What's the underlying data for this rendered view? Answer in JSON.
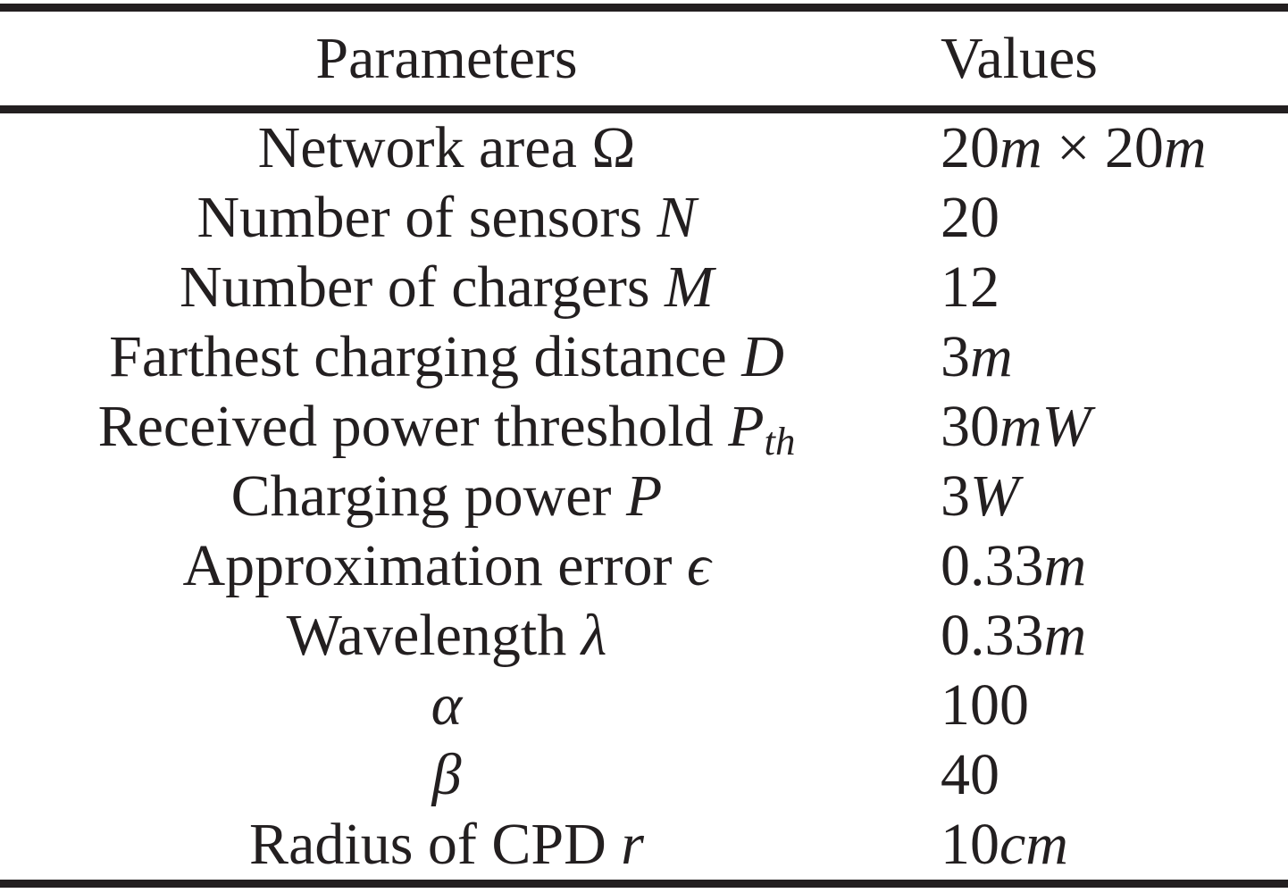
{
  "colors": {
    "text": "#231f20",
    "rule": "#231f20",
    "background": "#ffffff"
  },
  "table": {
    "col_headers": [
      "Parameters",
      "Values"
    ],
    "rows": [
      {
        "parameter_text": "Network area Ω",
        "value_text": "20m × 20m",
        "parameter_parts": [
          [
            "r",
            "Network area Ω"
          ]
        ],
        "value_parts": [
          [
            "r",
            "20"
          ],
          [
            "i",
            "m"
          ],
          [
            "r",
            " × 20"
          ],
          [
            "i",
            "m"
          ]
        ]
      },
      {
        "parameter_text": "Number of sensors N",
        "value_text": "20",
        "parameter_parts": [
          [
            "r",
            "Number of sensors "
          ],
          [
            "i",
            "N"
          ]
        ],
        "value_parts": [
          [
            "r",
            "20"
          ]
        ]
      },
      {
        "parameter_text": "Number of chargers M",
        "value_text": "12",
        "parameter_parts": [
          [
            "r",
            "Number of chargers "
          ],
          [
            "i",
            "M"
          ]
        ],
        "value_parts": [
          [
            "r",
            "12"
          ]
        ]
      },
      {
        "parameter_text": "Farthest charging distance D",
        "value_text": "3m",
        "parameter_parts": [
          [
            "r",
            "Farthest charging distance "
          ],
          [
            "i",
            "D"
          ]
        ],
        "value_parts": [
          [
            "r",
            "3"
          ],
          [
            "i",
            "m"
          ]
        ]
      },
      {
        "parameter_text": "Received power threshold Pth",
        "value_text": "30mW",
        "parameter_parts": [
          [
            "r",
            "Received power threshold "
          ],
          [
            "i",
            "P"
          ],
          [
            "s",
            "th"
          ]
        ],
        "value_parts": [
          [
            "r",
            "30"
          ],
          [
            "i",
            "mW"
          ]
        ]
      },
      {
        "parameter_text": "Charging power P",
        "value_text": "3W",
        "parameter_parts": [
          [
            "r",
            "Charging power "
          ],
          [
            "i",
            "P"
          ]
        ],
        "value_parts": [
          [
            "r",
            "3"
          ],
          [
            "i",
            "W"
          ]
        ]
      },
      {
        "parameter_text": "Approximation error ϵ",
        "value_text": "0.33m",
        "parameter_parts": [
          [
            "r",
            "Approximation error "
          ],
          [
            "i",
            "ϵ"
          ]
        ],
        "value_parts": [
          [
            "r",
            "0.33"
          ],
          [
            "i",
            "m"
          ]
        ]
      },
      {
        "parameter_text": "Wavelength λ",
        "value_text": "0.33m",
        "parameter_parts": [
          [
            "r",
            "Wavelength "
          ],
          [
            "i",
            "λ"
          ]
        ],
        "value_parts": [
          [
            "r",
            "0.33"
          ],
          [
            "i",
            "m"
          ]
        ]
      },
      {
        "parameter_text": "α",
        "value_text": "100",
        "parameter_parts": [
          [
            "i",
            "α"
          ]
        ],
        "value_parts": [
          [
            "r",
            "100"
          ]
        ]
      },
      {
        "parameter_text": "β",
        "value_text": "40",
        "parameter_parts": [
          [
            "i",
            "β"
          ]
        ],
        "value_parts": [
          [
            "r",
            "40"
          ]
        ]
      },
      {
        "parameter_text": "Radius of CPD r",
        "value_text": "10cm",
        "parameter_parts": [
          [
            "r",
            "Radius of CPD "
          ],
          [
            "i",
            "r"
          ]
        ],
        "value_parts": [
          [
            "r",
            "10"
          ],
          [
            "i",
            "cm"
          ]
        ]
      }
    ]
  }
}
